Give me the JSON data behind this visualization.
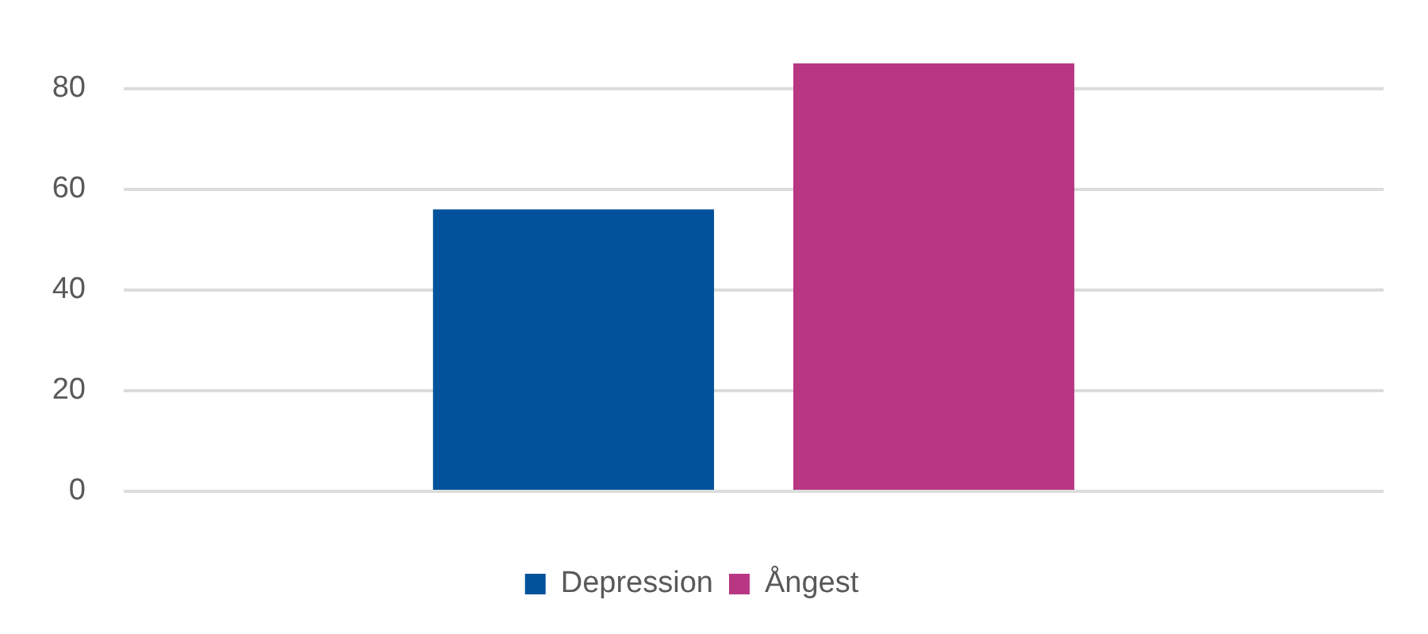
{
  "chart_data": {
    "type": "bar",
    "categories": [
      null
    ],
    "series": [
      {
        "name": "Depression",
        "color": "#02529b",
        "values": [
          56
        ]
      },
      {
        "name": "Ångest",
        "color": "#b83783",
        "values": [
          85
        ]
      }
    ],
    "ylim": [
      0,
      85
    ],
    "yticks": [
      0,
      20,
      40,
      60,
      80
    ],
    "grid": "y",
    "legend": "bottom"
  }
}
